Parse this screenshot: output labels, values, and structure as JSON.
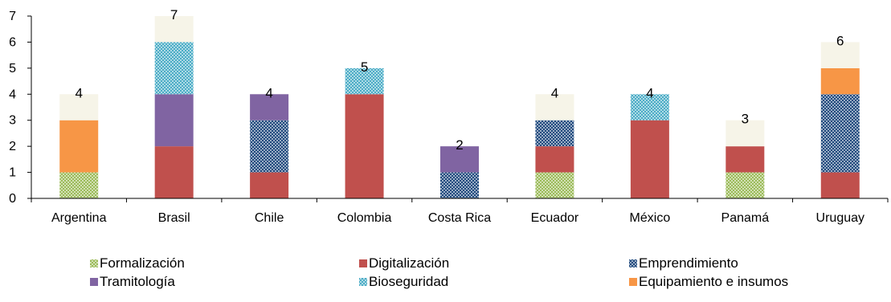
{
  "chart_data": {
    "type": "bar",
    "stacked": true,
    "categories": [
      "Argentina",
      "Brasil",
      "Chile",
      "Colombia",
      "Costa Rica",
      "Ecuador",
      "México",
      "Panamá",
      "Uruguay"
    ],
    "series": [
      {
        "name": "Formalización",
        "color": "#9bbb59",
        "pattern": "checker",
        "values": [
          1,
          0,
          0,
          0,
          0,
          1,
          0,
          1,
          0
        ]
      },
      {
        "name": "Digitalización",
        "color": "#c0504d",
        "pattern": "solid",
        "values": [
          0,
          2,
          1,
          4,
          0,
          1,
          3,
          1,
          1
        ]
      },
      {
        "name": "Emprendimiento",
        "color": "#1f497d",
        "pattern": "checker",
        "values": [
          0,
          0,
          2,
          0,
          1,
          1,
          0,
          0,
          3
        ]
      },
      {
        "name": "Tramitología",
        "color": "#8064a2",
        "pattern": "solid",
        "values": [
          0,
          2,
          1,
          0,
          1,
          0,
          0,
          0,
          0
        ]
      },
      {
        "name": "Bioseguridad",
        "color": "#4bacc6",
        "pattern": "checker",
        "values": [
          0,
          2,
          0,
          1,
          0,
          0,
          1,
          0,
          0
        ]
      },
      {
        "name": "Equipamiento e insumos",
        "color": "#f79646",
        "pattern": "solid",
        "values": [
          2,
          0,
          0,
          0,
          0,
          0,
          0,
          0,
          1
        ]
      },
      {
        "name": "",
        "color": "#f6f4e8",
        "pattern": "solid",
        "values": [
          1,
          1,
          0,
          0,
          0,
          1,
          0,
          1,
          1
        ]
      }
    ],
    "totals": [
      "4",
      "7",
      "4",
      "5",
      "2",
      "4",
      "4",
      "3",
      "6"
    ],
    "ylim": [
      0,
      7
    ],
    "yticks": [
      "0",
      "1",
      "2",
      "3",
      "4",
      "5",
      "6",
      "7"
    ],
    "legend_position": "bottom",
    "grid": false
  }
}
